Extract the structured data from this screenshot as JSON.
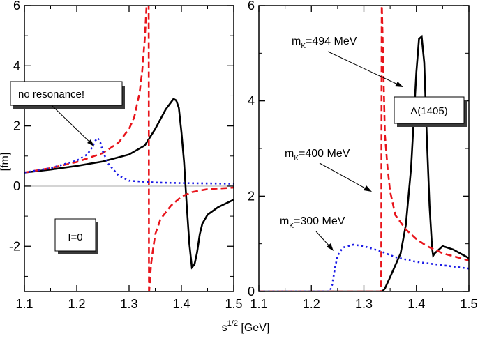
{
  "chart_data": [
    {
      "type": "line",
      "panel": "left",
      "xlabel": "s^{1/2} [GeV]",
      "ylabel": "[fm]",
      "xlim": [
        1.1,
        1.5
      ],
      "ylim": [
        -3.5,
        6
      ],
      "x_ticks": [
        "1.1",
        "1.2",
        "1.3",
        "1.4",
        "1.5"
      ],
      "y_ticks": [
        "-2",
        "0",
        "2",
        "4",
        "6"
      ],
      "annotations": {
        "no_resonance": "no resonance!",
        "isospin": "I=0"
      },
      "series": [
        {
          "name": "solid",
          "color": "#000000",
          "dash": "none",
          "x": [
            1.1,
            1.15,
            1.2,
            1.25,
            1.3,
            1.33,
            1.35,
            1.37,
            1.385,
            1.39,
            1.395,
            1.4,
            1.405,
            1.41,
            1.415,
            1.42,
            1.425,
            1.43,
            1.435,
            1.44,
            1.45,
            1.47,
            1.5
          ],
          "y": [
            0.45,
            0.55,
            0.67,
            0.82,
            1.05,
            1.35,
            1.9,
            2.55,
            2.9,
            2.85,
            2.6,
            1.8,
            0.8,
            -0.6,
            -1.9,
            -2.7,
            -2.6,
            -2.2,
            -1.6,
            -1.25,
            -0.95,
            -0.7,
            -0.45
          ]
        },
        {
          "name": "dashed",
          "color": "#e8141b",
          "dash": "9,5",
          "x": [
            1.1,
            1.15,
            1.2,
            1.25,
            1.28,
            1.3,
            1.31,
            1.32,
            1.325,
            1.33,
            1.334,
            1.3375,
            1.338,
            1.342,
            1.345,
            1.35,
            1.36,
            1.38,
            1.4,
            1.42,
            1.45,
            1.5
          ],
          "y": [
            0.45,
            0.6,
            0.8,
            1.1,
            1.45,
            1.9,
            2.3,
            3.1,
            3.8,
            4.9,
            6.2,
            6.2,
            -3.6,
            -2.6,
            -2.2,
            -1.6,
            -1.1,
            -0.65,
            -0.35,
            -0.2,
            -0.1,
            -0.05
          ]
        },
        {
          "name": "dotted",
          "color": "#1a1ae6",
          "dash": "2.5,4",
          "x": [
            1.1,
            1.15,
            1.2,
            1.22,
            1.23,
            1.235,
            1.24,
            1.245,
            1.25,
            1.26,
            1.28,
            1.3,
            1.35,
            1.4,
            1.5
          ],
          "y": [
            0.45,
            0.6,
            0.85,
            1.05,
            1.3,
            1.5,
            1.6,
            1.45,
            1.15,
            0.75,
            0.35,
            0.18,
            0.12,
            0.1,
            0.08
          ]
        }
      ]
    },
    {
      "type": "line",
      "panel": "right",
      "xlim": [
        1.1,
        1.5
      ],
      "ylim": [
        0,
        6
      ],
      "x_ticks": [
        "1.1",
        "1.2",
        "1.3",
        "1.4",
        "1.5"
      ],
      "y_ticks": [
        "0",
        "2",
        "4",
        "6"
      ],
      "annotations": {
        "mk494": {
          "main": "m",
          "sub": "K",
          "rest": "=494 MeV"
        },
        "mk400": {
          "main": "m",
          "sub": "K",
          "rest": "=400 MeV"
        },
        "mk300": {
          "main": "m",
          "sub": "K",
          "rest": "=300 MeV"
        },
        "lambda": "Λ(1405)"
      },
      "series": [
        {
          "name": "solid (m_K=494 MeV)",
          "color": "#000000",
          "dash": "none",
          "x": [
            1.1,
            1.3,
            1.335,
            1.34,
            1.35,
            1.37,
            1.38,
            1.39,
            1.4,
            1.405,
            1.41,
            1.415,
            1.42,
            1.425,
            1.43,
            1.432,
            1.435,
            1.45,
            1.47,
            1.5
          ],
          "y": [
            0,
            0,
            0,
            0.06,
            0.3,
            0.8,
            1.4,
            2.6,
            4.6,
            5.3,
            5.35,
            4.8,
            3.2,
            1.8,
            0.9,
            0.75,
            0.8,
            0.95,
            0.88,
            0.7
          ]
        },
        {
          "name": "dashed (m_K=400 MeV)",
          "color": "#e8141b",
          "dash": "9,5",
          "x": [
            1.1,
            1.32,
            1.33,
            1.333,
            1.3335,
            1.334,
            1.336,
            1.34,
            1.345,
            1.35,
            1.36,
            1.38,
            1.4,
            1.42,
            1.45,
            1.5
          ],
          "y": [
            0,
            0,
            0,
            0,
            3,
            6.1,
            5.2,
            3.3,
            2.6,
            2.1,
            1.6,
            1.3,
            1.1,
            0.95,
            0.8,
            0.65
          ]
        },
        {
          "name": "dotted (m_K=300 MeV)",
          "color": "#1a1ae6",
          "dash": "2.5,4",
          "x": [
            1.1,
            1.235,
            1.24,
            1.245,
            1.25,
            1.26,
            1.28,
            1.3,
            1.33,
            1.36,
            1.4,
            1.45,
            1.5
          ],
          "y": [
            0,
            0,
            0.15,
            0.5,
            0.75,
            0.92,
            0.98,
            0.95,
            0.85,
            0.72,
            0.62,
            0.55,
            0.48
          ]
        }
      ]
    }
  ]
}
